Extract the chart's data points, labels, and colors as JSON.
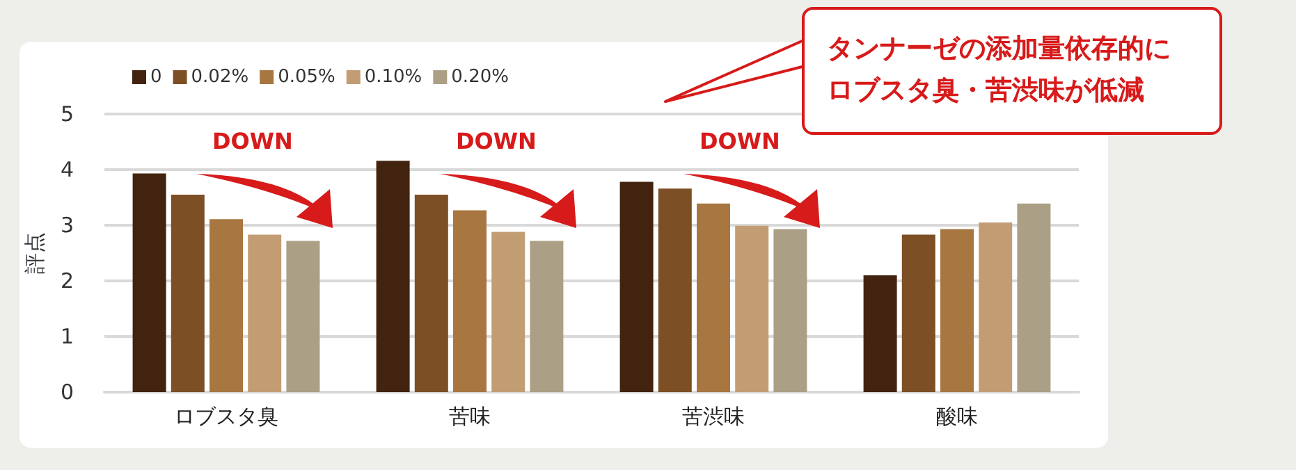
{
  "chart_data": {
    "type": "bar",
    "ylabel": "評点",
    "categories": [
      "ロブスタ臭",
      "苦味",
      "苦渋味",
      "酸味"
    ],
    "series": [
      {
        "name": "0",
        "color": "#42230f",
        "values": [
          3.93,
          4.16,
          3.78,
          2.1
        ]
      },
      {
        "name": "0.02%",
        "color": "#7d4f24",
        "values": [
          3.55,
          3.55,
          3.66,
          2.83
        ]
      },
      {
        "name": "0.05%",
        "color": "#a87640",
        "values": [
          3.11,
          3.27,
          3.39,
          2.93
        ]
      },
      {
        "name": "0.10%",
        "color": "#c29d73",
        "values": [
          2.83,
          2.88,
          2.99,
          3.05
        ]
      },
      {
        "name": "0.20%",
        "color": "#aba085",
        "values": [
          2.72,
          2.72,
          2.93,
          3.39
        ]
      }
    ],
    "ylim": [
      0,
      5
    ],
    "yticks": [
      0,
      1,
      2,
      3,
      4,
      5
    ],
    "grid": "y",
    "legend": "top left",
    "annotations": [
      "DOWN",
      "DOWN",
      "DOWN",
      "タンナーゼの添加量依存的にロブスタ臭・苦渋味が低減"
    ]
  }
}
